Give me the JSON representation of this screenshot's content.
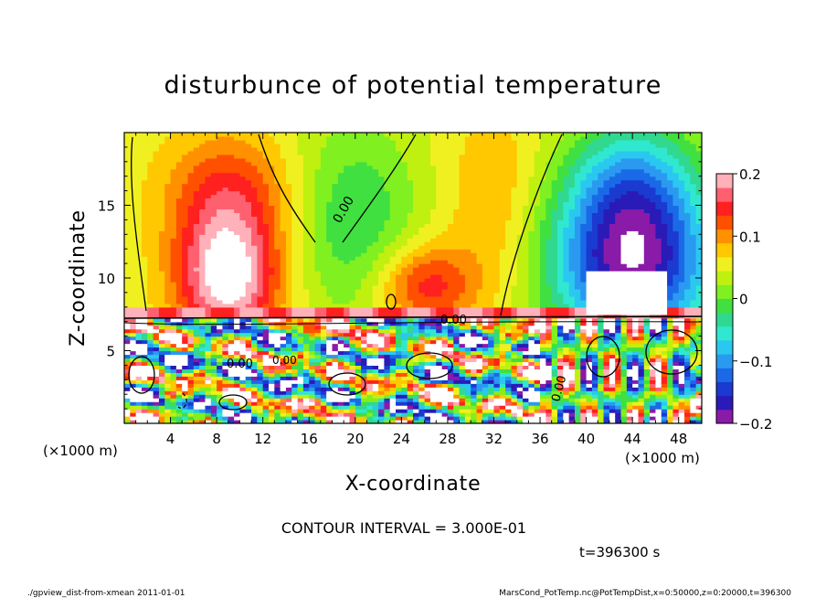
{
  "chart_data": {
    "type": "heatmap",
    "title": "disturbunce of potential temperature",
    "xlabel": "X-coordinate",
    "ylabel": "Z-coordinate",
    "x_unit": "(×1000 m)",
    "y_unit": "(×1000 m)",
    "xlim": [
      0,
      50
    ],
    "ylim": [
      0,
      20
    ],
    "x_ticks": [
      "4",
      "8",
      "12",
      "16",
      "20",
      "24",
      "28",
      "32",
      "36",
      "40",
      "44",
      "48"
    ],
    "x_tick_values": [
      4,
      8,
      12,
      16,
      20,
      24,
      28,
      32,
      36,
      40,
      44,
      48
    ],
    "y_ticks": [
      "5",
      "10",
      "15"
    ],
    "y_tick_values": [
      5,
      10,
      15
    ],
    "colorbar": {
      "range": [
        -0.2,
        0.2
      ],
      "tick_labels": [
        "0.2",
        "0.1",
        "0",
        "−0.1",
        "−0.2"
      ],
      "tick_values": [
        0.2,
        0.1,
        0,
        -0.1,
        -0.2
      ],
      "colors": [
        "#8a1aa8",
        "#2a1ab8",
        "#1a3ad0",
        "#1a6ae8",
        "#2a9af0",
        "#2ac8f0",
        "#30e8d0",
        "#30d890",
        "#40e040",
        "#80f020",
        "#c0f010",
        "#f0f020",
        "#ffc800",
        "#ff9000",
        "#ff5000",
        "#ff2020",
        "#ff6070",
        "#ffb0b8"
      ]
    },
    "contour_labels": [
      "0.00",
      "0.00",
      "0.00",
      "0.00",
      "0.00"
    ],
    "contour_interval_text": "CONTOUR INTERVAL = 3.000E-01",
    "time_text": "t=396300 s"
  },
  "footer": {
    "left": "./gpview_dist-from-xmean  2011-01-01",
    "right": "MarsCond_PotTemp.nc@PotTempDist,x=0:50000,z=0:20000,t=396300"
  }
}
